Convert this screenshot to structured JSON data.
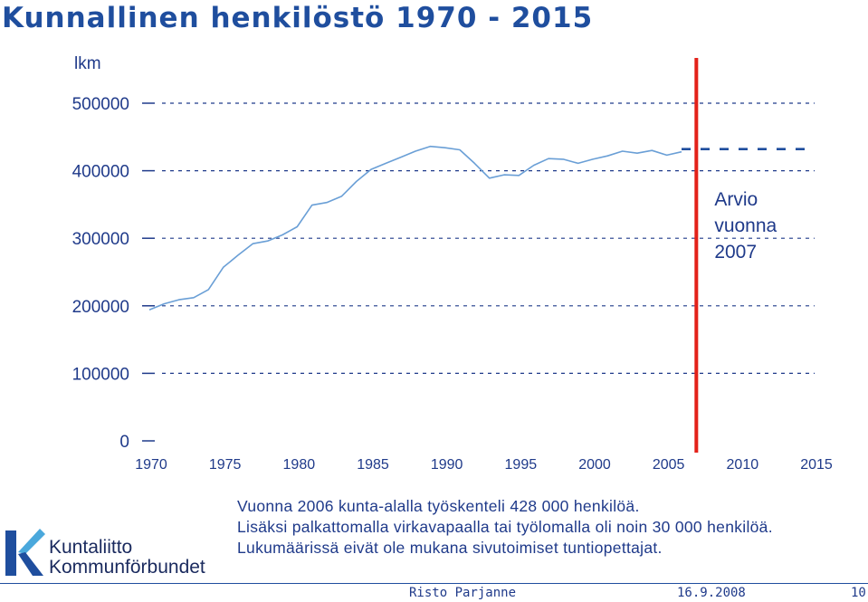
{
  "slide": {
    "title": "Kunnallinen henkilöstö 1970 - 2015",
    "notes": [
      "Vuonna 2006 kunta-alalla työskenteli 428 000 henkilöä.",
      "Lisäksi palkattomalla virkavapaalla tai työlomalla oli noin 30 000 henkilöä.",
      "Lukumäärissä eivät ole mukana sivutoimiset tuntiopettajat."
    ],
    "logo": {
      "line1": "Kuntaliitto",
      "line2": "Kommunförbundet",
      "colors": [
        "#1f4e9e",
        "#4aa8dc"
      ]
    },
    "footer": {
      "author": "Risto Parjanne",
      "date": "16.9.2008",
      "page": "10"
    }
  },
  "chart_data": {
    "type": "line",
    "ylabel": "lkm",
    "ylim": [
      0,
      500000
    ],
    "yticks": [
      0,
      100000,
      200000,
      300000,
      400000,
      500000
    ],
    "xlim": [
      1970,
      2015
    ],
    "xticks": [
      1970,
      1975,
      1980,
      1985,
      1990,
      1995,
      2000,
      2005,
      2010,
      2015
    ],
    "grid": "dashed horizontal",
    "series": [
      {
        "color": "#6a9fd6",
        "x": [
          1970,
          1971,
          1972,
          1973,
          1974,
          1975,
          1976,
          1977,
          1978,
          1979,
          1980,
          1981,
          1982,
          1983,
          1984,
          1985,
          1986,
          1987,
          1988,
          1989,
          1990,
          1991,
          1992,
          1993,
          1994,
          1995,
          1996,
          1997,
          1998,
          1999,
          2000,
          2001,
          2002,
          2003,
          2004,
          2005,
          2006
        ],
        "values": [
          194000,
          203000,
          209000,
          212000,
          224000,
          257000,
          275000,
          292000,
          296000,
          305000,
          317000,
          349000,
          353000,
          362000,
          384000,
          402000,
          411000,
          420000,
          429000,
          436000,
          434000,
          431000,
          411000,
          389000,
          394000,
          393000,
          408000,
          418000,
          417000,
          411000,
          417000,
          422000,
          429000,
          426000,
          430000,
          423000,
          428000
        ]
      },
      {
        "style": "dashed",
        "color": "#1f4e9e",
        "x": [
          2006,
          2015
        ],
        "values": [
          432000,
          432000
        ]
      }
    ],
    "marker_line": {
      "x": 2007,
      "color": "#e32119"
    },
    "annotation": {
      "text": [
        "Arvio",
        "vuonna",
        "2007"
      ]
    }
  }
}
